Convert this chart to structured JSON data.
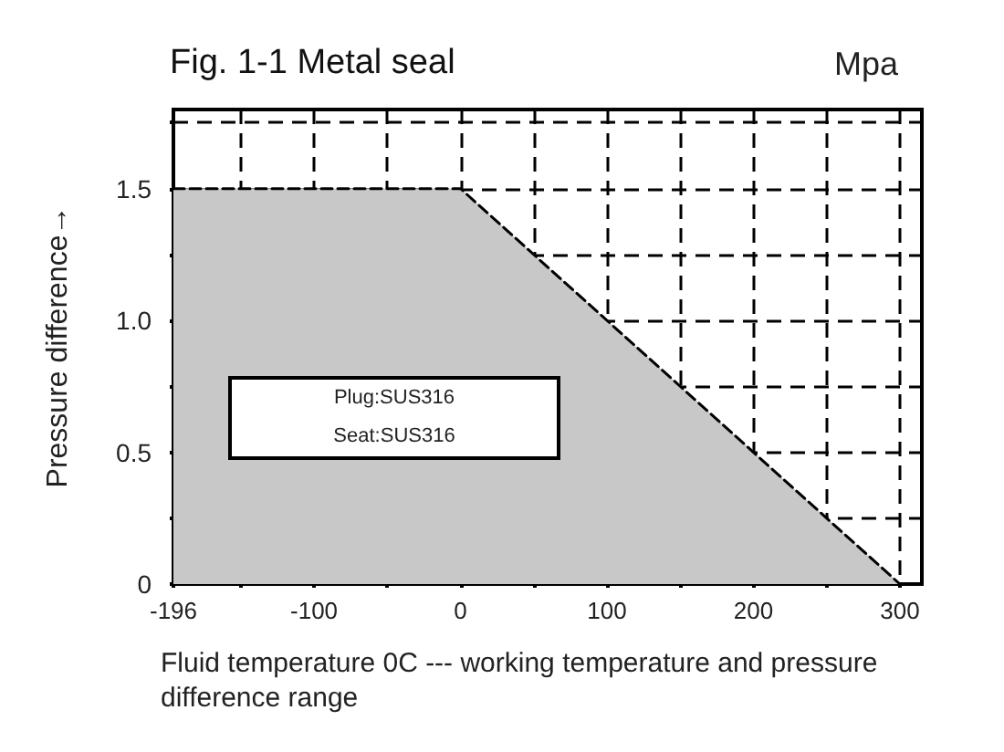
{
  "chart_data": {
    "type": "area",
    "title": "Fig. 1-1 Metal seal",
    "xlabel": "Fluid temperature 0C --- working temperature and pressure difference range",
    "ylabel": "Pressure difference→",
    "annotations": [
      "Mpa",
      "Plug:SUS316\nSeat:SUS316"
    ],
    "x": [
      -196,
      0,
      300
    ],
    "series": [
      {
        "color": "#c8c8c8",
        "values": [
          1.5,
          1.5,
          0
        ]
      }
    ],
    "line_style": "dashed",
    "marker": "none",
    "xlim": [
      -196,
      315
    ],
    "xticks": [
      -196,
      {
        "value": -150,
        "label": null
      },
      -100,
      {
        "value": -50,
        "label": null
      },
      0,
      {
        "value": 50,
        "label": null
      },
      100,
      {
        "value": 150,
        "label": null
      },
      200,
      {
        "value": 250,
        "label": null
      },
      300
    ],
    "ylim": [
      0,
      1.8
    ],
    "yticks": [
      0,
      {
        "value": 0.25,
        "label": null
      },
      0.5,
      {
        "value": 0.75,
        "label": null
      },
      {
        "value": 1,
        "label": "1.0"
      },
      {
        "value": 1.25,
        "label": null
      },
      1.5,
      {
        "value": 1.75,
        "label": null
      }
    ],
    "grid": true
  }
}
